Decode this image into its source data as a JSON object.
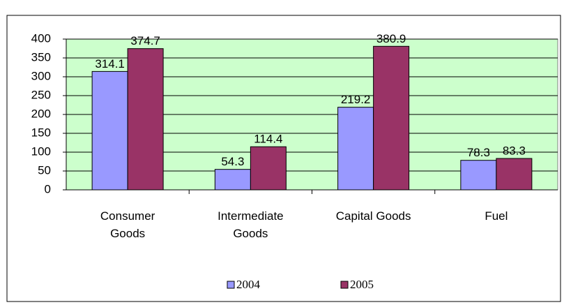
{
  "chart_data": {
    "type": "bar",
    "categories": [
      "Consumer Goods",
      "Intermediate Goods",
      "Capital Goods",
      "Fuel"
    ],
    "series": [
      {
        "name": "2004",
        "color": "#9999ff",
        "values": [
          314.1,
          54.3,
          219.2,
          78.3
        ]
      },
      {
        "name": "2005",
        "color": "#993366",
        "values": [
          374.7,
          114.4,
          380.9,
          83.3
        ]
      }
    ],
    "ylim": [
      0,
      400
    ],
    "yticks": [
      0,
      50,
      100,
      150,
      200,
      250,
      300,
      350,
      400
    ],
    "grid": true,
    "legend": "bottom"
  }
}
